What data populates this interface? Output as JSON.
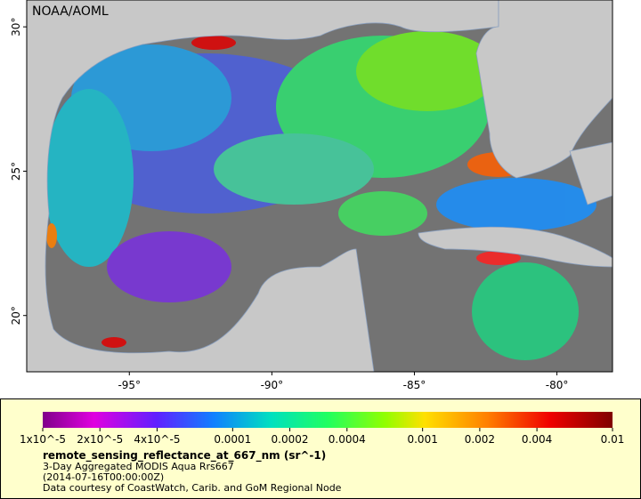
{
  "map": {
    "credit": "NOAA/AOML",
    "xlim": [
      -98.6,
      -78.05
    ],
    "ylim": [
      18.05,
      30.93
    ],
    "xticks": [
      {
        "value": -95,
        "label": "-95°"
      },
      {
        "value": -90,
        "label": "-90°"
      },
      {
        "value": -85,
        "label": "-85°"
      },
      {
        "value": -80,
        "label": "-80°"
      }
    ],
    "yticks": [
      {
        "value": 30,
        "label": "30°"
      },
      {
        "value": 25,
        "label": "25°"
      },
      {
        "value": 20,
        "label": "20°"
      }
    ],
    "colorbar": {
      "scale": "log",
      "lim": [
        1e-05,
        0.01
      ],
      "ticks": [
        {
          "value": 1e-05,
          "label": "1x10^-5"
        },
        {
          "value": 2e-05,
          "label": "2x10^-5"
        },
        {
          "value": 4e-05,
          "label": "4x10^-5"
        },
        0.0001,
        0.0002,
        0.0004,
        0.001,
        0.002,
        0.004,
        0.01
      ]
    },
    "legend": {
      "variable": "remote_sensing_reflectance_at_667_nm (sr^-1)",
      "lines": [
        "3-Day Aggregated MODIS Aqua Rrs667",
        "(2014-07-16T00:00:00Z)",
        "Data courtesy of CoastWatch, Carib. and GoM Regional Node"
      ]
    }
  }
}
